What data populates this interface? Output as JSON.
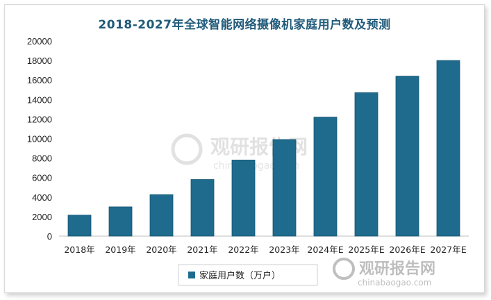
{
  "chart_data": {
    "type": "bar",
    "title": "2018-2027年全球智能网络摄像机家庭用户数及预测",
    "categories": [
      "2018年",
      "2019年",
      "2020年",
      "2021年",
      "2022年",
      "2023年",
      "2024年E",
      "2025年E",
      "2026年E",
      "2027年E"
    ],
    "series": [
      {
        "name": "家庭用户数（万户）",
        "values": [
          2150,
          3000,
          4250,
          5800,
          7800,
          9900,
          12200,
          14700,
          16400,
          18000
        ]
      }
    ],
    "ylim": [
      0,
      20000
    ],
    "yticks": [
      0,
      2000,
      4000,
      6000,
      8000,
      10000,
      12000,
      14000,
      16000,
      18000,
      20000
    ],
    "grid": false,
    "legend_position": "bottom",
    "colors": {
      "bar": "#1f6b8e",
      "bar_edge": "#165670",
      "title": "#1f5a7a"
    }
  },
  "watermark": {
    "center_cn": "观研报告网",
    "center_en": "chinabaogao.com",
    "corner_cn": "观研报告网",
    "corner_en": "chinabaogao.com"
  }
}
